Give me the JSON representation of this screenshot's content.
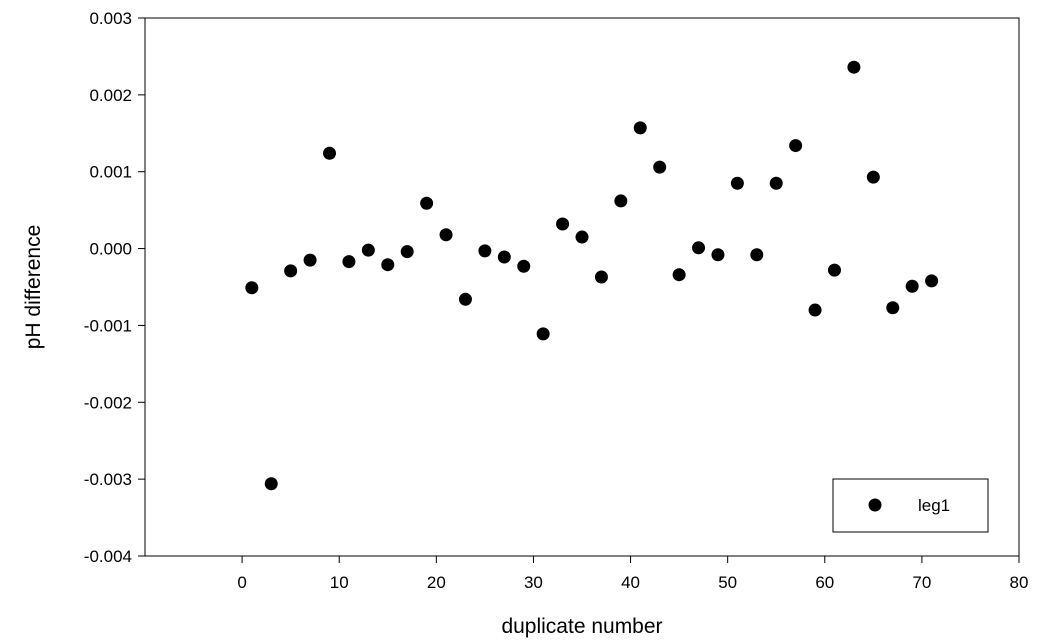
{
  "chart_data": {
    "type": "scatter",
    "title": "",
    "xlabel": "duplicate number",
    "ylabel": "pH difference",
    "xlim": [
      -10,
      80
    ],
    "ylim": [
      -0.004,
      0.003
    ],
    "x_ticks": [
      0,
      10,
      20,
      30,
      40,
      50,
      60,
      70,
      80
    ],
    "x_tick_labels": [
      "0",
      "10",
      "20",
      "30",
      "40",
      "50",
      "60",
      "70",
      "80"
    ],
    "y_ticks": [
      -0.004,
      -0.003,
      -0.002,
      -0.001,
      0.0,
      0.001,
      0.002,
      0.003
    ],
    "y_tick_labels": [
      "-0.004",
      "-0.003",
      "-0.002",
      "-0.001",
      "0.000",
      "0.001",
      "0.002",
      "0.003"
    ],
    "grid": false,
    "legend_position": "bottom-right",
    "series": [
      {
        "name": "leg1",
        "color": "#000000",
        "marker": "filled-circle",
        "x": [
          1,
          3,
          5,
          7,
          9,
          11,
          13,
          15,
          17,
          19,
          21,
          23,
          25,
          27,
          29,
          31,
          33,
          35,
          37,
          39,
          41,
          43,
          45,
          47,
          49,
          51,
          53,
          55,
          57,
          59,
          61,
          63,
          65,
          67,
          69,
          71
        ],
        "y": [
          -0.00051,
          -0.00306,
          -0.00029,
          -0.00015,
          0.00124,
          -0.00017,
          -2e-05,
          -0.00021,
          -4e-05,
          0.00059,
          0.00018,
          -0.00066,
          -3e-05,
          -0.00011,
          -0.00023,
          -0.00111,
          0.00032,
          0.00015,
          -0.00037,
          0.00062,
          0.00157,
          0.00106,
          -0.00034,
          1e-05,
          -8e-05,
          0.00085,
          -8e-05,
          0.00085,
          0.00134,
          -0.0008,
          -0.00028,
          0.00236,
          0.00093,
          -0.00077,
          -0.00049,
          -0.00042
        ]
      }
    ]
  }
}
